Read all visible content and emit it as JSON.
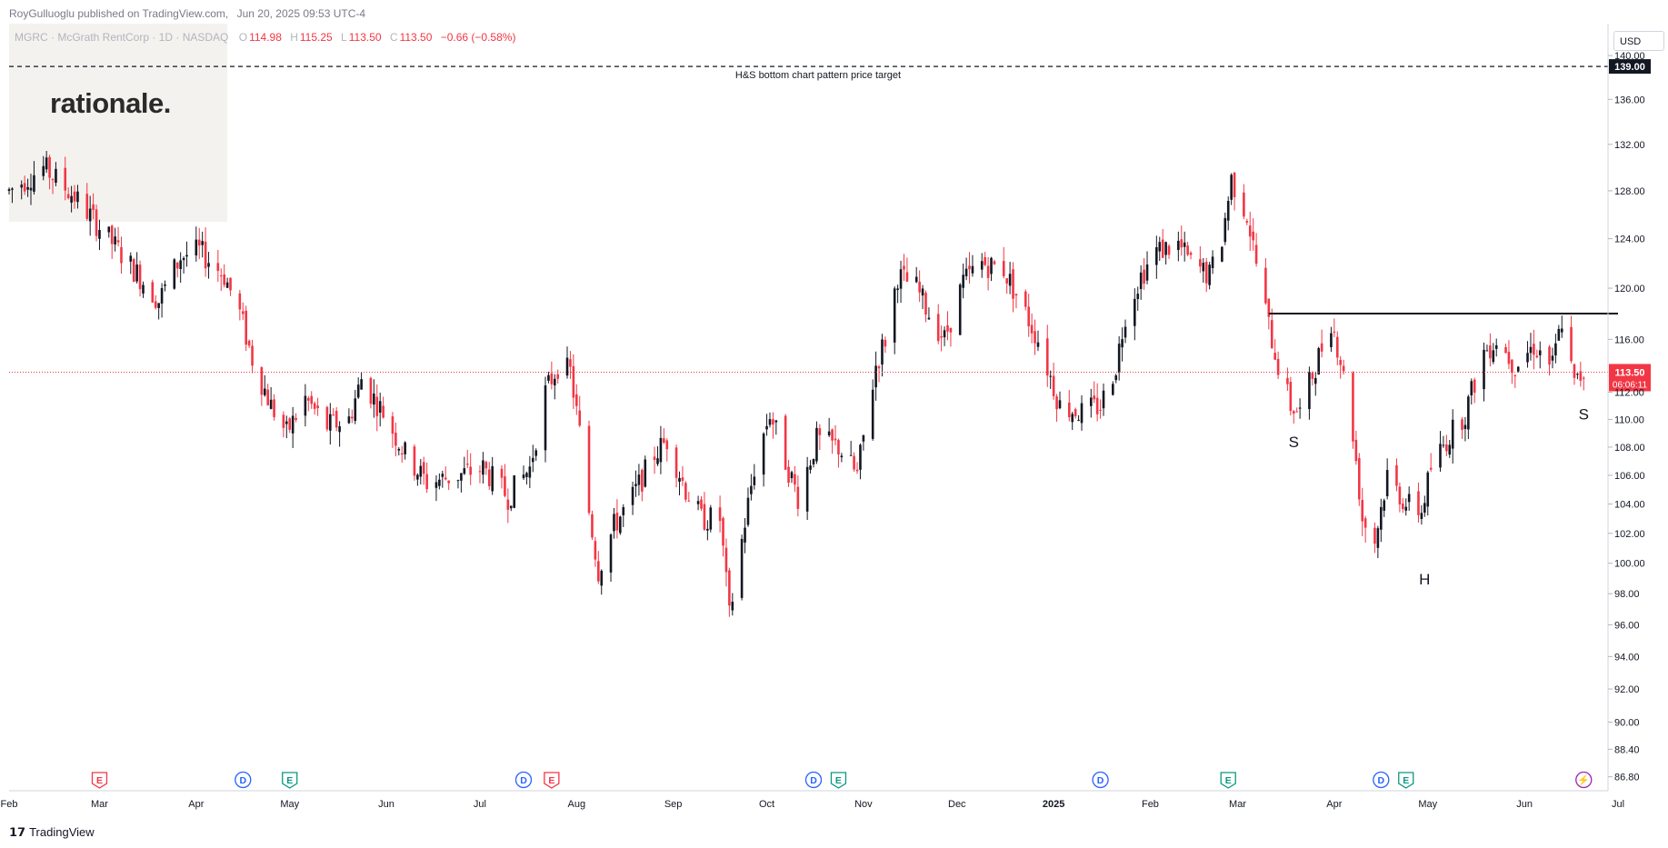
{
  "header": {
    "publisher": "RoyGulluoglu published on TradingView.com,",
    "datetime": "Jun 20, 2025 09:53 UTC-4"
  },
  "legend": {
    "symbol": "MGRC · McGrath RentCorp · 1D · NASDAQ",
    "open_label": "O",
    "open": "114.98",
    "high_label": "H",
    "high": "115.25",
    "low_label": "L",
    "low": "113.50",
    "close_label": "C",
    "close": "113.50",
    "change": "−0.66 (−0.58%)"
  },
  "watermark": {
    "text": "rationale."
  },
  "currency_button": "USD",
  "footer": {
    "brand": "TradingView"
  },
  "colors": {
    "up": "#131722",
    "down": "#f23645",
    "price_line": "#f23645",
    "target_line": "#131722",
    "neckline": "#131722",
    "dividend_event": "#2962ff",
    "earnings_event": "#089981",
    "earnings_event_alt": "#f23645",
    "dividend_event_latest": "#9c27b0"
  },
  "chart_data": {
    "type": "candlestick",
    "title": "",
    "symbol": "MGRC",
    "interval": "1D",
    "y_scale": "log",
    "ylim": [
      86.0,
      143.0
    ],
    "y_ticks": [
      140.0,
      136.0,
      132.0,
      128.0,
      124.0,
      120.0,
      116.0,
      112.0,
      110.0,
      108.0,
      106.0,
      104.0,
      102.0,
      100.0,
      98.0,
      96.0,
      94.0,
      92.0,
      90.0,
      88.4,
      86.8
    ],
    "x_tick_labels": [
      "Feb",
      "Mar",
      "Apr",
      "May",
      "Jun",
      "Jul",
      "Aug",
      "Sep",
      "Oct",
      "Nov",
      "Dec",
      "2025",
      "Feb",
      "Mar",
      "Apr",
      "May",
      "Jun",
      "Jul"
    ],
    "x_tick_dates": [
      "2024-02-01",
      "2024-03-01",
      "2024-04-01",
      "2024-05-01",
      "2024-06-01",
      "2024-07-01",
      "2024-08-01",
      "2024-09-01",
      "2024-10-01",
      "2024-11-01",
      "2024-12-01",
      "2025-01-01",
      "2025-02-01",
      "2025-03-01",
      "2025-04-01",
      "2025-05-01",
      "2025-06-01",
      "2025-07-01"
    ],
    "x_range": [
      "2024-02-01",
      "2025-07-01"
    ],
    "grid": false,
    "anchors": [
      [
        "2024-02-01",
        128.0
      ],
      [
        "2024-02-12",
        130.0
      ],
      [
        "2024-02-22",
        127.5
      ],
      [
        "2024-03-04",
        124.0
      ],
      [
        "2024-03-12",
        121.5
      ],
      [
        "2024-03-20",
        119.0
      ],
      [
        "2024-03-27",
        122.5
      ],
      [
        "2024-04-02",
        123.0
      ],
      [
        "2024-04-10",
        121.0
      ],
      [
        "2024-04-15",
        118.0
      ],
      [
        "2024-04-19",
        114.5
      ],
      [
        "2024-04-25",
        111.0
      ],
      [
        "2024-04-30",
        109.0
      ],
      [
        "2024-05-06",
        111.5
      ],
      [
        "2024-05-13",
        109.5
      ],
      [
        "2024-05-20",
        110.0
      ],
      [
        "2024-05-24",
        113.0
      ],
      [
        "2024-05-31",
        110.5
      ],
      [
        "2024-06-07",
        107.5
      ],
      [
        "2024-06-14",
        105.5
      ],
      [
        "2024-06-24",
        106.0
      ],
      [
        "2024-07-02",
        106.5
      ],
      [
        "2024-07-10",
        104.5
      ],
      [
        "2024-07-17",
        106.5
      ],
      [
        "2024-07-22",
        112.0
      ],
      [
        "2024-07-26",
        114.0
      ],
      [
        "2024-07-30",
        113.5
      ],
      [
        "2024-08-02",
        109.0
      ],
      [
        "2024-08-05",
        103.5
      ],
      [
        "2024-08-08",
        99.5
      ],
      [
        "2024-08-13",
        102.5
      ],
      [
        "2024-08-19",
        104.5
      ],
      [
        "2024-08-26",
        107.5
      ],
      [
        "2024-08-30",
        108.5
      ],
      [
        "2024-09-05",
        105.0
      ],
      [
        "2024-09-10",
        103.0
      ],
      [
        "2024-09-16",
        103.0
      ],
      [
        "2024-09-19",
        96.5
      ],
      [
        "2024-09-23",
        101.5
      ],
      [
        "2024-09-27",
        106.5
      ],
      [
        "2024-10-02",
        110.5
      ],
      [
        "2024-10-07",
        107.0
      ],
      [
        "2024-10-11",
        104.5
      ],
      [
        "2024-10-17",
        108.5
      ],
      [
        "2024-10-24",
        108.0
      ],
      [
        "2024-10-30",
        106.0
      ],
      [
        "2024-11-05",
        114.0
      ],
      [
        "2024-11-08",
        116.0
      ],
      [
        "2024-11-12",
        121.0
      ],
      [
        "2024-11-18",
        120.0
      ],
      [
        "2024-11-22",
        118.0
      ],
      [
        "2024-11-27",
        116.0
      ],
      [
        "2024-12-03",
        120.5
      ],
      [
        "2024-12-09",
        122.0
      ],
      [
        "2024-12-16",
        121.5
      ],
      [
        "2024-12-20",
        119.5
      ],
      [
        "2024-12-27",
        116.0
      ],
      [
        "2025-01-03",
        111.0
      ],
      [
        "2025-01-10",
        110.5
      ],
      [
        "2025-01-16",
        111.0
      ],
      [
        "2025-01-21",
        114.0
      ],
      [
        "2025-01-24",
        118.0
      ],
      [
        "2025-01-29",
        121.0
      ],
      [
        "2025-02-03",
        123.0
      ],
      [
        "2025-02-10",
        123.5
      ],
      [
        "2025-02-14",
        122.0
      ],
      [
        "2025-02-20",
        121.0
      ],
      [
        "2025-02-24",
        124.0
      ],
      [
        "2025-02-27",
        129.0
      ],
      [
        "2025-03-04",
        126.0
      ],
      [
        "2025-03-07",
        122.0
      ],
      [
        "2025-03-11",
        117.0
      ],
      [
        "2025-03-14",
        114.0
      ],
      [
        "2025-03-18",
        111.0
      ],
      [
        "2025-03-21",
        110.5
      ],
      [
        "2025-03-26",
        114.0
      ],
      [
        "2025-03-31",
        117.5
      ],
      [
        "2025-04-03",
        114.5
      ],
      [
        "2025-04-07",
        109.0
      ],
      [
        "2025-04-10",
        103.0
      ],
      [
        "2025-04-14",
        101.5
      ],
      [
        "2025-04-18",
        106.0
      ],
      [
        "2025-04-24",
        104.0
      ],
      [
        "2025-04-29",
        103.5
      ],
      [
        "2025-05-02",
        106.5
      ],
      [
        "2025-05-07",
        108.5
      ],
      [
        "2025-05-13",
        110.5
      ],
      [
        "2025-05-19",
        115.0
      ],
      [
        "2025-05-23",
        116.0
      ],
      [
        "2025-05-29",
        114.0
      ],
      [
        "2025-06-04",
        115.5
      ],
      [
        "2025-06-10",
        114.0
      ],
      [
        "2025-06-13",
        117.5
      ],
      [
        "2025-06-17",
        112.5
      ],
      [
        "2025-06-20",
        113.5
      ]
    ],
    "last_price": 113.5,
    "last_price_label": "113.50",
    "last_price_countdown": "06:06:11",
    "target_price": 139.0,
    "target_price_label": "139.00",
    "target_annotation": "H&S bottom chart pattern price target",
    "neckline": {
      "price": 118.0,
      "from": "2025-03-11",
      "to": "2025-07-01"
    },
    "pattern_labels": [
      {
        "text": "S",
        "date": "2025-03-19",
        "price": 108.0
      },
      {
        "text": "H",
        "date": "2025-04-30",
        "price": 98.6
      },
      {
        "text": "S",
        "date": "2025-06-20",
        "price": 110.0
      }
    ],
    "events": [
      {
        "date": "2024-03-01",
        "letter": "E",
        "kind": "earnings_event_alt"
      },
      {
        "date": "2024-04-16",
        "letter": "D",
        "kind": "dividend_event"
      },
      {
        "date": "2024-05-01",
        "letter": "E",
        "kind": "earnings_event"
      },
      {
        "date": "2024-07-15",
        "letter": "D",
        "kind": "dividend_event"
      },
      {
        "date": "2024-07-24",
        "letter": "E",
        "kind": "earnings_event_alt"
      },
      {
        "date": "2024-10-16",
        "letter": "D",
        "kind": "dividend_event"
      },
      {
        "date": "2024-10-24",
        "letter": "E",
        "kind": "earnings_event"
      },
      {
        "date": "2025-01-16",
        "letter": "D",
        "kind": "dividend_event"
      },
      {
        "date": "2025-02-26",
        "letter": "E",
        "kind": "earnings_event"
      },
      {
        "date": "2025-04-16",
        "letter": "D",
        "kind": "dividend_event"
      },
      {
        "date": "2025-04-24",
        "letter": "E",
        "kind": "earnings_event"
      },
      {
        "date": "2025-06-20",
        "letter": "",
        "kind": "dividend_event_latest"
      }
    ]
  }
}
